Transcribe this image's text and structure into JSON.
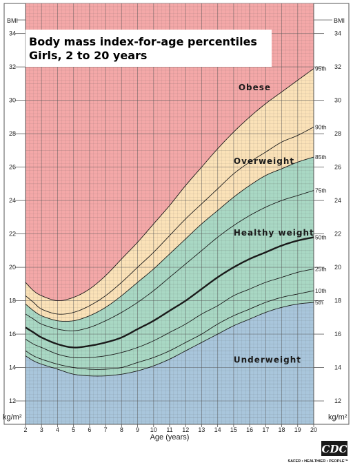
{
  "chart_data": {
    "type": "line",
    "title_line1": "Body mass index-for-age percentiles",
    "title_line2": "Girls, 2 to 20 years",
    "xlabel": "Age (years)",
    "ylabel_top": "BMI",
    "ylabel_bottom": "kg/m²",
    "xlim": [
      2,
      20
    ],
    "ylim": [
      10.6,
      35.8
    ],
    "x_ticks": [
      2,
      3,
      4,
      5,
      6,
      7,
      8,
      9,
      10,
      11,
      12,
      13,
      14,
      15,
      16,
      17,
      18,
      19,
      20
    ],
    "y_ticks": [
      12,
      14,
      16,
      18,
      20,
      22,
      24,
      26,
      28,
      30,
      32,
      34
    ],
    "x": [
      2,
      2.5,
      3,
      4,
      5,
      6,
      7,
      8,
      9,
      10,
      11,
      12,
      13,
      14,
      15,
      16,
      17,
      18,
      19,
      20
    ],
    "series": [
      {
        "name": "5th",
        "values": [
          14.7,
          14.4,
          14.2,
          13.9,
          13.6,
          13.5,
          13.5,
          13.6,
          13.8,
          14.1,
          14.5,
          15.0,
          15.5,
          16.0,
          16.5,
          16.9,
          17.3,
          17.6,
          17.8,
          17.9
        ]
      },
      {
        "name": "10th",
        "values": [
          15.0,
          14.7,
          14.5,
          14.2,
          14.0,
          13.9,
          13.9,
          14.0,
          14.3,
          14.6,
          15.0,
          15.5,
          16.0,
          16.6,
          17.1,
          17.5,
          17.9,
          18.2,
          18.4,
          18.6
        ]
      },
      {
        "name": "25th",
        "values": [
          15.7,
          15.4,
          15.2,
          14.8,
          14.6,
          14.6,
          14.7,
          14.9,
          15.2,
          15.6,
          16.1,
          16.6,
          17.2,
          17.7,
          18.3,
          18.7,
          19.1,
          19.4,
          19.7,
          19.9
        ]
      },
      {
        "name": "50th",
        "values": [
          16.4,
          16.1,
          15.8,
          15.4,
          15.2,
          15.3,
          15.5,
          15.8,
          16.3,
          16.8,
          17.4,
          18.0,
          18.7,
          19.4,
          20.0,
          20.5,
          20.9,
          21.3,
          21.6,
          21.8
        ]
      },
      {
        "name": "75th",
        "values": [
          17.2,
          16.9,
          16.6,
          16.3,
          16.2,
          16.4,
          16.8,
          17.3,
          17.9,
          18.6,
          19.4,
          20.2,
          21.0,
          21.8,
          22.5,
          23.1,
          23.6,
          24.0,
          24.3,
          24.6
        ]
      },
      {
        "name": "85th",
        "values": [
          17.8,
          17.4,
          17.1,
          16.8,
          16.8,
          17.1,
          17.6,
          18.3,
          19.1,
          19.9,
          20.8,
          21.7,
          22.6,
          23.4,
          24.2,
          24.9,
          25.5,
          25.9,
          26.3,
          26.6
        ]
      },
      {
        "name": "90th",
        "values": [
          18.3,
          17.9,
          17.5,
          17.2,
          17.3,
          17.7,
          18.3,
          19.1,
          20.0,
          20.9,
          21.9,
          22.9,
          23.8,
          24.7,
          25.6,
          26.3,
          26.9,
          27.5,
          27.9,
          28.4
        ]
      },
      {
        "name": "95th",
        "values": [
          19.1,
          18.6,
          18.3,
          18.0,
          18.2,
          18.7,
          19.5,
          20.5,
          21.5,
          22.6,
          23.7,
          24.9,
          26.0,
          27.1,
          28.1,
          29.0,
          29.8,
          30.5,
          31.2,
          31.9
        ]
      }
    ],
    "zones": [
      {
        "label": "Obese",
        "color": "#f4a8a8",
        "x": 15.3,
        "y": 30.6
      },
      {
        "label": "Overweight",
        "color": "#fbe2b8",
        "x": 15.0,
        "y": 26.2
      },
      {
        "label": "Healthy weight",
        "color": "#a9d8c4",
        "x": 15.0,
        "y": 21.9
      },
      {
        "label": "Underweight",
        "color": "#a9c6dc",
        "x": 15.0,
        "y": 14.3
      }
    ],
    "legend_placement": "labels at right end of curves",
    "grid": true
  },
  "footer": {
    "logo_text": "CDC",
    "tagline": "SAFER • HEALTHIER • PEOPLE™"
  }
}
